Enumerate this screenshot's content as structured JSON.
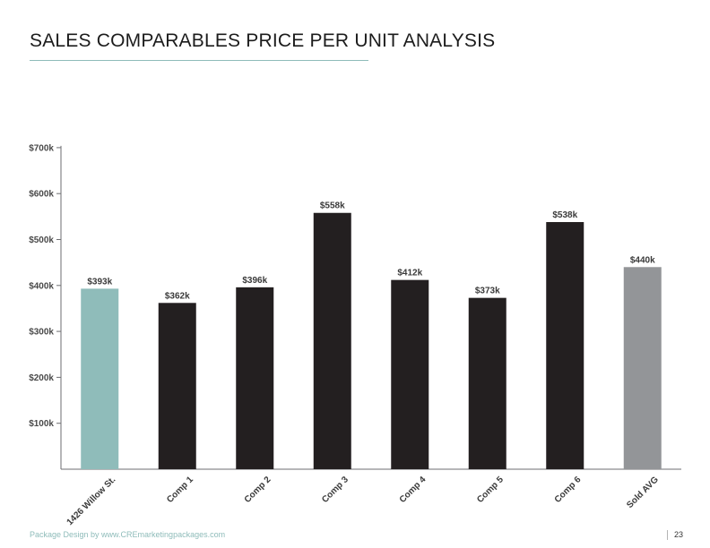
{
  "page": {
    "title": "SALES COMPARABLES PRICE PER UNIT ANALYSIS",
    "footer_credit": "Package Design by www.CREmarketingpackages.com",
    "page_number": "23"
  },
  "colors": {
    "subject": "#8fbcba",
    "comp": "#231f20",
    "average": "#939598",
    "accent": "#8fbcba",
    "axis": "#6d6e71"
  },
  "chart_data": {
    "type": "bar",
    "title": "",
    "xlabel": "",
    "ylabel": "",
    "categories": [
      "1426 Willow St.",
      "Comp 1",
      "Comp 2",
      "Comp 3",
      "Comp 4",
      "Comp 5",
      "Comp 6",
      "Sold AVG"
    ],
    "values": [
      393,
      362,
      396,
      558,
      412,
      373,
      538,
      440
    ],
    "value_labels": [
      "$393k",
      "$362k",
      "$396k",
      "$558k",
      "$412k",
      "$373k",
      "$538k",
      "$440k"
    ],
    "bar_kinds": [
      "subject",
      "comp",
      "comp",
      "comp",
      "comp",
      "comp",
      "comp",
      "average"
    ],
    "ylim": [
      0,
      700
    ],
    "yticks": [
      100,
      200,
      300,
      400,
      500,
      600,
      700
    ],
    "ytick_labels": [
      "$100k",
      "$200k",
      "$300k",
      "$400k",
      "$500k",
      "$600k",
      "$700k"
    ],
    "grid": false,
    "legend": "none"
  }
}
